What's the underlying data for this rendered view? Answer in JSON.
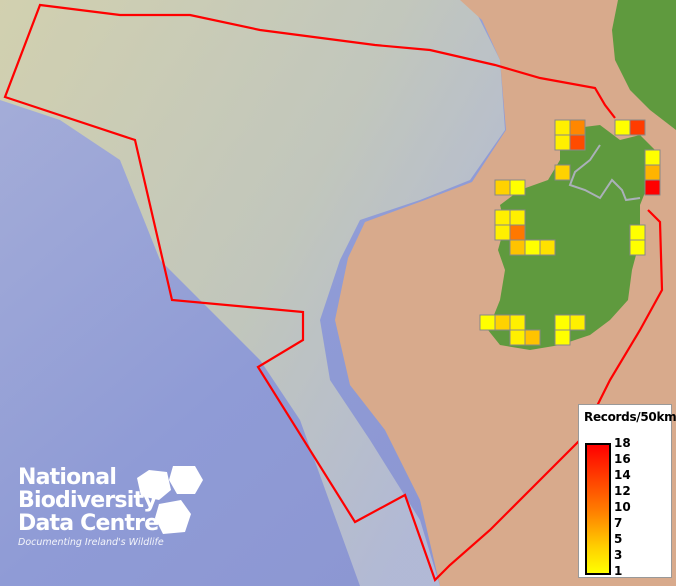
{
  "legend": {
    "title": "Records/50km",
    "ticks": [
      "18",
      "16",
      "14",
      "12",
      "10",
      "7",
      "5",
      "3",
      "1"
    ],
    "color_low": "#ffff00",
    "color_high": "#ff0000"
  },
  "logo": {
    "line1": "National",
    "line2": "Biodiversity",
    "line3": "Data Centre",
    "tagline": "Documenting Ireland's Wildlife"
  },
  "colors": {
    "boundary": "#ff0000",
    "land": "#5f9a3e",
    "shelf": "#d8aa8c",
    "ocean": "#8c9bd8",
    "cell_border": "#888888"
  },
  "grid_cells": [
    {
      "col": 0,
      "row": 0,
      "records": 2
    },
    {
      "col": 1,
      "row": 0,
      "records": 9
    },
    {
      "col": 0,
      "row": 1,
      "records": 2
    },
    {
      "col": 1,
      "row": 1,
      "records": 13
    },
    {
      "col": 4,
      "row": 0,
      "records": 1
    },
    {
      "col": 5,
      "row": 0,
      "records": 14
    },
    {
      "col": 6,
      "row": 2,
      "records": 1
    },
    {
      "col": 6,
      "row": 3,
      "records": 6
    },
    {
      "col": 6,
      "row": 4,
      "records": 18
    },
    {
      "col": 0,
      "row": 3,
      "records": 4
    },
    {
      "col": -4,
      "row": 4,
      "records": 4
    },
    {
      "col": -3,
      "row": 4,
      "records": 1
    },
    {
      "col": -4,
      "row": 6,
      "records": 2
    },
    {
      "col": -3,
      "row": 6,
      "records": 2
    },
    {
      "col": -4,
      "row": 7,
      "records": 2
    },
    {
      "col": -3,
      "row": 7,
      "records": 10
    },
    {
      "col": -3,
      "row": 8,
      "records": 5
    },
    {
      "col": -2,
      "row": 8,
      "records": 1
    },
    {
      "col": -1,
      "row": 8,
      "records": 3
    },
    {
      "col": 5,
      "row": 7,
      "records": 1
    },
    {
      "col": 5,
      "row": 8,
      "records": 1
    },
    {
      "col": -5,
      "row": 13,
      "records": 1
    },
    {
      "col": -4,
      "row": 13,
      "records": 4
    },
    {
      "col": -3,
      "row": 13,
      "records": 2
    },
    {
      "col": -3,
      "row": 14,
      "records": 2
    },
    {
      "col": -2,
      "row": 14,
      "records": 5
    },
    {
      "col": 0,
      "row": 13,
      "records": 1
    },
    {
      "col": 1,
      "row": 13,
      "records": 2
    },
    {
      "col": 0,
      "row": 14,
      "records": 1
    }
  ]
}
